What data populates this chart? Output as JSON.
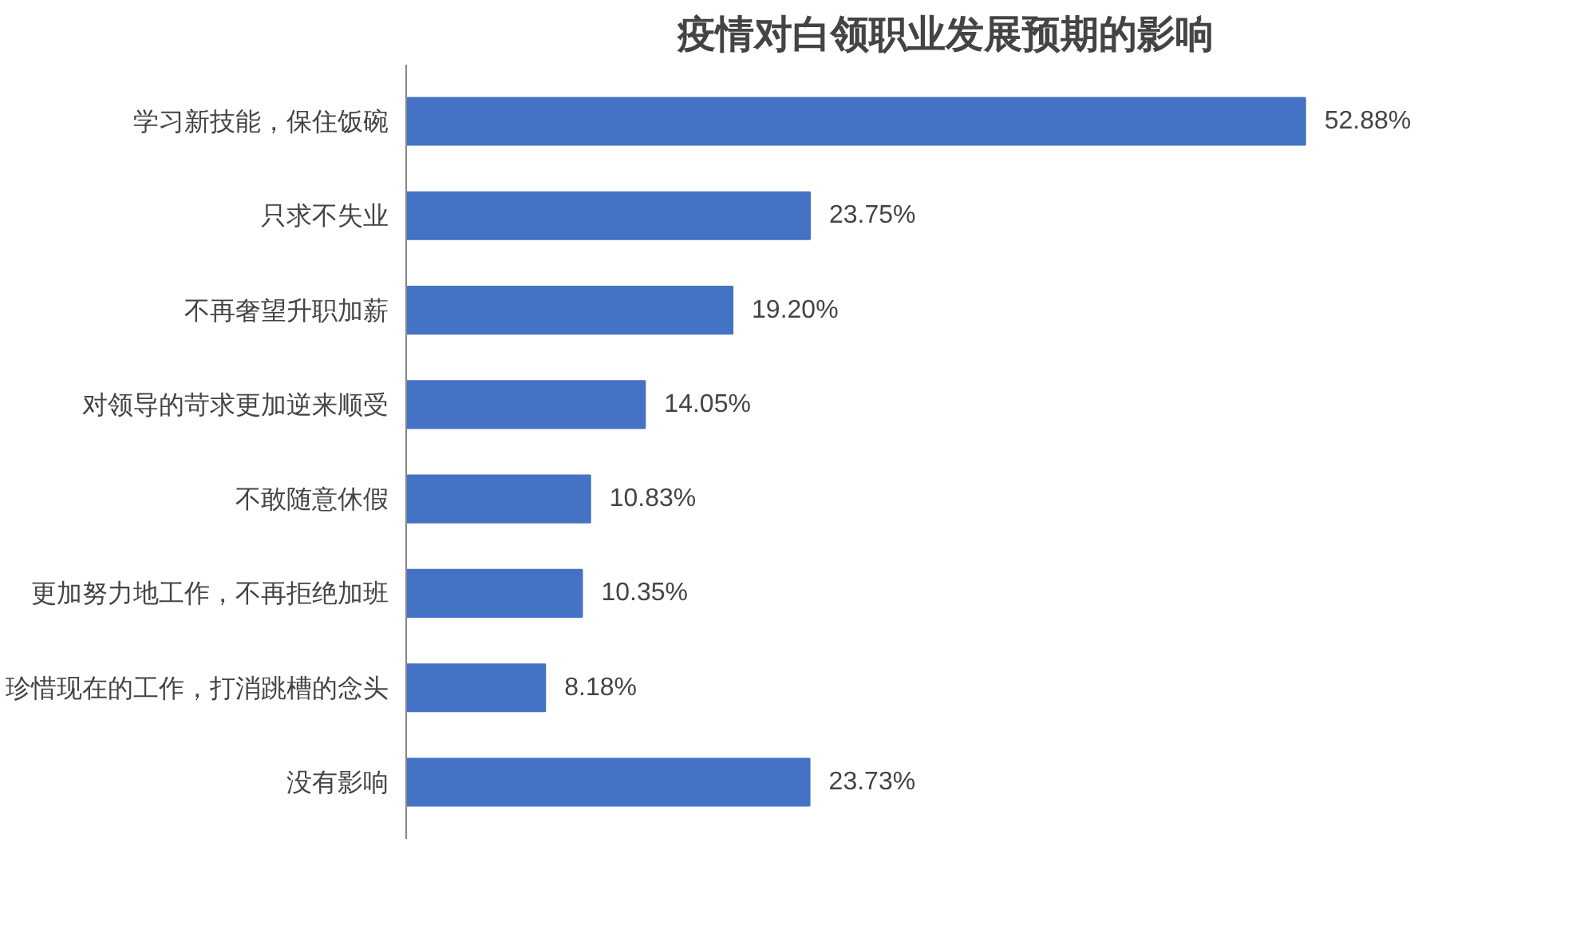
{
  "chart_data": {
    "type": "bar",
    "orientation": "horizontal",
    "title": "疫情对白领职业发展预期的影响",
    "categories": [
      "学习新技能，保住饭碗",
      "只求不失业",
      "不再奢望升职加薪",
      "对领导的苛求更加逆来顺受",
      "不敢随意休假",
      "更加努力地工作，不再拒绝加班",
      "珍惜现在的工作，打消跳槽的念头",
      "没有影响"
    ],
    "values": [
      52.88,
      23.75,
      19.2,
      14.05,
      10.83,
      10.35,
      8.18,
      23.73
    ],
    "value_labels": [
      "52.88%",
      "23.75%",
      "19.20%",
      "14.05%",
      "10.83%",
      "10.35%",
      "8.18%",
      "23.73%"
    ],
    "color": "#4472c4",
    "grid": false
  }
}
